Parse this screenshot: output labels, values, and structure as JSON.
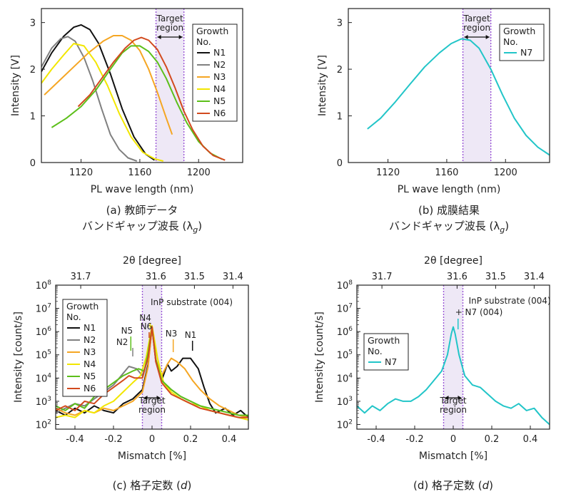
{
  "colors": {
    "N1": "#111111",
    "N2": "#808080",
    "N3": "#f5a623",
    "N4": "#f2e600",
    "N5": "#5cbf1a",
    "N6": "#d24a1e",
    "N7": "#22c5c8",
    "target_fill": "#eee8f6",
    "target_line": "#9a55d6",
    "frame": "#222222"
  },
  "captions": {
    "a_line1": "(a) 教師データ",
    "a_line2": "バンドギャップ波長 (λ",
    "b_line1": "(b) 成膜結果",
    "b_line2": "バンドギャップ波長 (λ",
    "sub_g": "g",
    "close_paren": ")",
    "c_label": "(c) 格子定数 (",
    "d_label": "(d) 格子定数 (",
    "d_var": "d"
  },
  "legend_title": [
    "Growth",
    "No."
  ],
  "target_label": [
    "Target",
    "region"
  ],
  "chart_data": [
    {
      "id": "a",
      "type": "line",
      "xlabel": "PL wave length (nm)",
      "ylabel": "Intensity [V]",
      "xlim": [
        1093,
        1230
      ],
      "ylim": [
        0,
        3.3
      ],
      "xticks": [
        1120,
        1160,
        1200
      ],
      "yticks": [
        0,
        1,
        2,
        3
      ],
      "target_region": [
        1171,
        1190
      ],
      "series": [
        {
          "name": "N1",
          "x": [
            1093,
            1100,
            1108,
            1115,
            1120,
            1126,
            1132,
            1140,
            1148,
            1156,
            1164,
            1170
          ],
          "y": [
            1.95,
            2.35,
            2.7,
            2.9,
            2.95,
            2.85,
            2.55,
            1.9,
            1.15,
            0.55,
            0.18,
            0.05
          ]
        },
        {
          "name": "N2",
          "x": [
            1093,
            1100,
            1106,
            1111,
            1116,
            1122,
            1128,
            1134,
            1140,
            1146,
            1152,
            1158
          ],
          "y": [
            2.05,
            2.45,
            2.65,
            2.7,
            2.6,
            2.25,
            1.75,
            1.15,
            0.6,
            0.28,
            0.1,
            0.03
          ]
        },
        {
          "name": "N3",
          "x": [
            1095,
            1105,
            1115,
            1125,
            1135,
            1142,
            1148,
            1154,
            1160,
            1166,
            1172,
            1178,
            1182
          ],
          "y": [
            1.45,
            1.75,
            2.05,
            2.35,
            2.6,
            2.72,
            2.72,
            2.62,
            2.4,
            2.0,
            1.5,
            0.95,
            0.6
          ]
        },
        {
          "name": "N4",
          "x": [
            1093,
            1100,
            1108,
            1115,
            1122,
            1130,
            1138,
            1146,
            1154,
            1162,
            1170,
            1176
          ],
          "y": [
            1.7,
            2.0,
            2.3,
            2.55,
            2.5,
            2.15,
            1.65,
            1.05,
            0.55,
            0.22,
            0.08,
            0.03
          ]
        },
        {
          "name": "N5",
          "x": [
            1100,
            1110,
            1120,
            1130,
            1140,
            1148,
            1154,
            1160,
            1166,
            1172,
            1178,
            1185,
            1192,
            1200,
            1208,
            1216
          ],
          "y": [
            0.75,
            0.95,
            1.2,
            1.55,
            2.0,
            2.35,
            2.5,
            2.5,
            2.38,
            2.15,
            1.8,
            1.3,
            0.85,
            0.45,
            0.2,
            0.07
          ]
        },
        {
          "name": "N6",
          "x": [
            1118,
            1126,
            1134,
            1142,
            1150,
            1156,
            1161,
            1166,
            1172,
            1178,
            1184,
            1190,
            1196,
            1203,
            1210,
            1218
          ],
          "y": [
            1.2,
            1.45,
            1.8,
            2.15,
            2.45,
            2.62,
            2.68,
            2.62,
            2.42,
            2.05,
            1.6,
            1.1,
            0.7,
            0.35,
            0.15,
            0.05
          ]
        }
      ]
    },
    {
      "id": "b",
      "type": "line",
      "xlabel": "PL wave length (nm)",
      "ylabel": "Intensity [V]",
      "xlim": [
        1093,
        1230
      ],
      "ylim": [
        0,
        3.3
      ],
      "xticks": [
        1120,
        1160,
        1200
      ],
      "yticks": [
        0,
        1,
        2,
        3
      ],
      "target_region": [
        1171,
        1190
      ],
      "series": [
        {
          "name": "N7",
          "x": [
            1106,
            1115,
            1125,
            1135,
            1145,
            1155,
            1163,
            1170,
            1176,
            1182,
            1190,
            1198,
            1206,
            1214,
            1222,
            1230
          ],
          "y": [
            0.72,
            0.95,
            1.3,
            1.68,
            2.05,
            2.35,
            2.55,
            2.65,
            2.62,
            2.45,
            2.0,
            1.45,
            0.95,
            0.58,
            0.33,
            0.16
          ]
        }
      ]
    },
    {
      "id": "c",
      "type": "line",
      "xlabel": "Mismatch [%]",
      "ylabel": "Intensity [count/s]",
      "x2label": "2θ [degree]",
      "xlim": [
        -0.5,
        0.5
      ],
      "ylog": true,
      "ylim_exp": [
        1.8,
        8
      ],
      "xticks": [
        -0.4,
        -0.2,
        0,
        0.2,
        0.4
      ],
      "xticklabels": [
        "-0.4",
        "-0.2",
        "0",
        "0.2",
        "0.4"
      ],
      "yticks_exp": [
        2,
        3,
        4,
        5,
        6,
        7,
        8
      ],
      "x2ticks": [
        -0.37,
        -0.17,
        0.02,
        0.22,
        0.42
      ],
      "x2ticklabels": [
        "31.7",
        "31.6",
        "31.5",
        "31.4"
      ],
      "x2ticklabel_positions": [
        -0.37,
        0.02,
        0.22,
        0.42
      ],
      "x2ticklabels_all": [
        "31.7",
        "31.6",
        "31.5",
        "31.4"
      ],
      "target_region": [
        -0.05,
        0.05
      ],
      "annotation_main": "InP substrate (004)",
      "peak_labels": [
        "N5",
        "N2",
        "N6",
        "N4",
        "N3",
        "N1"
      ],
      "series": [
        {
          "name": "N1",
          "x": [
            -0.5,
            -0.45,
            -0.4,
            -0.35,
            -0.3,
            -0.25,
            -0.2,
            -0.15,
            -0.1,
            -0.05,
            -0.02,
            0,
            0.02,
            0.05,
            0.08,
            0.1,
            0.13,
            0.16,
            0.2,
            0.24,
            0.27,
            0.3,
            0.33,
            0.38,
            0.42,
            0.46,
            0.5
          ],
          "y": [
            2.6,
            2.4,
            2.7,
            2.5,
            2.8,
            2.6,
            2.5,
            2.9,
            3.1,
            3.5,
            4.6,
            6.2,
            4.7,
            3.9,
            4.6,
            4.3,
            4.5,
            4.85,
            4.85,
            4.4,
            3.6,
            2.9,
            2.5,
            2.7,
            2.4,
            2.6,
            2.3
          ]
        },
        {
          "name": "N2",
          "x": [
            -0.5,
            -0.45,
            -0.4,
            -0.35,
            -0.3,
            -0.25,
            -0.2,
            -0.15,
            -0.12,
            -0.08,
            -0.05,
            -0.02,
            0,
            0.02,
            0.05,
            0.1,
            0.15,
            0.2,
            0.25,
            0.3,
            0.35,
            0.4,
            0.45,
            0.5
          ],
          "y": [
            2.5,
            2.7,
            2.9,
            2.8,
            3.1,
            3.4,
            3.7,
            4.2,
            4.5,
            4.4,
            4.1,
            4.9,
            6.15,
            4.7,
            3.9,
            3.5,
            3.2,
            3.0,
            2.8,
            2.6,
            2.5,
            2.4,
            2.3,
            2.2
          ]
        },
        {
          "name": "N3",
          "x": [
            -0.5,
            -0.45,
            -0.4,
            -0.35,
            -0.3,
            -0.25,
            -0.2,
            -0.15,
            -0.1,
            -0.05,
            -0.02,
            0,
            0.02,
            0.05,
            0.08,
            0.1,
            0.13,
            0.17,
            0.21,
            0.25,
            0.3,
            0.35,
            0.4,
            0.45,
            0.5
          ],
          "y": [
            2.7,
            2.5,
            2.4,
            2.6,
            2.5,
            2.7,
            2.6,
            2.8,
            3.0,
            3.4,
            4.5,
            6.2,
            4.8,
            4.1,
            4.6,
            4.85,
            4.7,
            4.4,
            3.9,
            3.5,
            3.1,
            2.8,
            2.6,
            2.4,
            2.3
          ]
        },
        {
          "name": "N4",
          "x": [
            -0.5,
            -0.45,
            -0.4,
            -0.35,
            -0.3,
            -0.25,
            -0.2,
            -0.15,
            -0.1,
            -0.06,
            -0.03,
            0,
            0.03,
            0.06,
            0.1,
            0.15,
            0.2,
            0.25,
            0.3,
            0.35,
            0.4,
            0.45,
            0.5
          ],
          "y": [
            2.3,
            2.4,
            2.3,
            2.6,
            2.5,
            2.8,
            3.0,
            3.4,
            3.8,
            4.1,
            4.9,
            6.25,
            4.8,
            3.8,
            3.4,
            3.1,
            2.9,
            2.8,
            2.6,
            2.5,
            2.4,
            2.3,
            2.2
          ]
        },
        {
          "name": "N5",
          "x": [
            -0.5,
            -0.45,
            -0.4,
            -0.35,
            -0.3,
            -0.25,
            -0.2,
            -0.15,
            -0.1,
            -0.07,
            -0.04,
            -0.02,
            0,
            0.02,
            0.05,
            0.1,
            0.15,
            0.2,
            0.25,
            0.3,
            0.35,
            0.4,
            0.45,
            0.5
          ],
          "y": [
            2.8,
            2.6,
            2.9,
            2.7,
            3.2,
            3.5,
            3.8,
            4.1,
            4.3,
            4.4,
            4.3,
            5.1,
            6.2,
            4.8,
            3.9,
            3.5,
            3.2,
            3.0,
            2.8,
            2.7,
            2.6,
            2.5,
            2.4,
            2.4
          ]
        },
        {
          "name": "N6",
          "x": [
            -0.5,
            -0.45,
            -0.4,
            -0.35,
            -0.3,
            -0.25,
            -0.2,
            -0.15,
            -0.12,
            -0.09,
            -0.05,
            -0.02,
            0,
            0.02,
            0.05,
            0.1,
            0.15,
            0.2,
            0.25,
            0.3,
            0.35,
            0.4,
            0.45,
            0.5
          ],
          "y": [
            2.6,
            2.8,
            2.6,
            3.0,
            2.9,
            3.3,
            3.6,
            3.9,
            4.1,
            4.0,
            4.0,
            4.9,
            6.2,
            4.7,
            3.8,
            3.3,
            3.1,
            2.9,
            2.7,
            2.6,
            2.5,
            2.4,
            2.3,
            2.3
          ]
        }
      ]
    },
    {
      "id": "d",
      "type": "line",
      "xlabel": "Mismatch [%]",
      "ylabel": "Intensity [count/s]",
      "x2label": "2θ [degree]",
      "xlim": [
        -0.5,
        0.5
      ],
      "ylog": true,
      "ylim_exp": [
        1.8,
        8
      ],
      "xticks": [
        -0.4,
        -0.2,
        0,
        0.2,
        0.4
      ],
      "xticklabels": [
        "-0.4",
        "-0.2",
        "0",
        "0.2",
        "0.4"
      ],
      "yticks_exp": [
        2,
        3,
        4,
        5,
        6,
        7,
        8
      ],
      "x2ticklabel_positions": [
        -0.37,
        0.02,
        0.22,
        0.42
      ],
      "x2ticklabels_all": [
        "31.7",
        "31.6",
        "31.5",
        "31.4"
      ],
      "target_region": [
        -0.05,
        0.05
      ],
      "annotation_main": "InP substrate (004)",
      "annotation_sub": "+ N7 (004)",
      "series": [
        {
          "name": "N7",
          "x": [
            -0.5,
            -0.46,
            -0.42,
            -0.38,
            -0.34,
            -0.3,
            -0.26,
            -0.22,
            -0.18,
            -0.14,
            -0.1,
            -0.06,
            -0.03,
            -0.01,
            0,
            0.01,
            0.03,
            0.06,
            0.1,
            0.14,
            0.18,
            0.22,
            0.26,
            0.3,
            0.34,
            0.38,
            0.42,
            0.46,
            0.5
          ],
          "y": [
            2.8,
            2.5,
            2.8,
            2.6,
            2.9,
            3.1,
            3.0,
            3.0,
            3.2,
            3.5,
            3.9,
            4.3,
            5.0,
            5.9,
            6.2,
            5.9,
            5.0,
            4.1,
            3.7,
            3.6,
            3.3,
            3.0,
            2.8,
            2.7,
            2.9,
            2.6,
            2.7,
            2.3,
            2.0
          ]
        }
      ]
    }
  ]
}
